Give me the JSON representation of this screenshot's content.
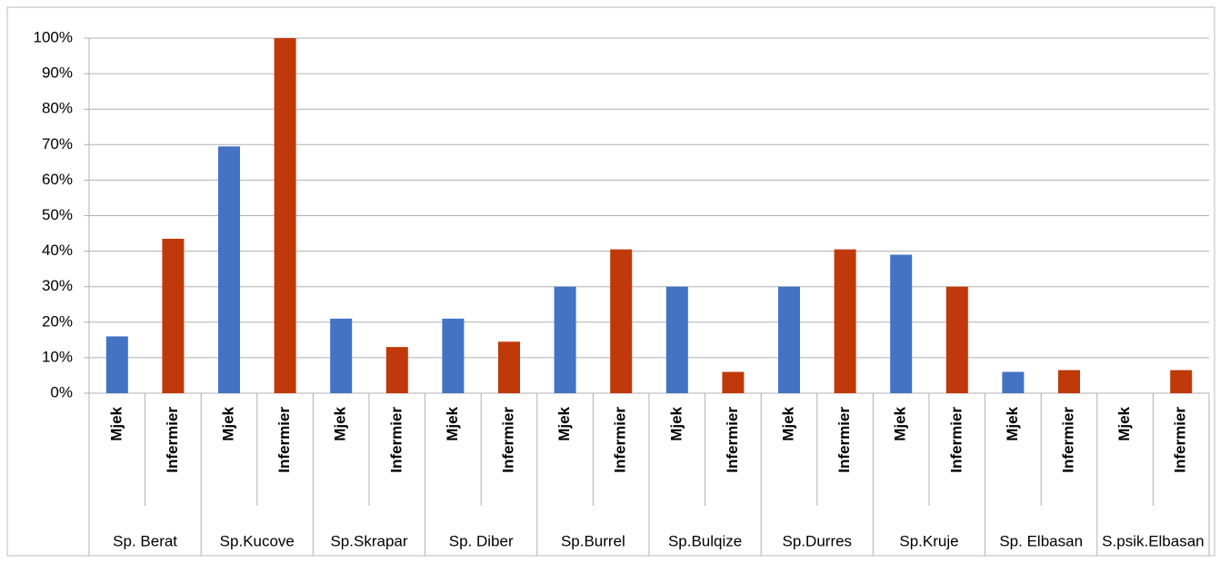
{
  "chart_data": {
    "type": "bar",
    "groups": [
      "Sp. Berat",
      "Sp.Kucove",
      "Sp.Skrapar",
      "Sp. Diber",
      "Sp.Burrel",
      "Sp.Bulqize",
      "Sp.Durres",
      "Sp.Kruje",
      "Sp. Elbasan",
      "S.psik.Elbasan"
    ],
    "categories": [
      "Mjek",
      "Infermier",
      "Mjek",
      "Infermier",
      "Mjek",
      "Infermier",
      "Mjek",
      "Infermier",
      "Mjek",
      "Infermier",
      "Mjek",
      "Infermier",
      "Mjek",
      "Infermier",
      "Mjek",
      "Infermier",
      "Mjek",
      "Infermier",
      "Mjek",
      "Infermier"
    ],
    "values": [
      16,
      43.5,
      69.5,
      100,
      21,
      13,
      21,
      14.5,
      30,
      40.5,
      30,
      6,
      30,
      40.5,
      39,
      30,
      6,
      6.5,
      0,
      6.5
    ],
    "colors": [
      "#4472c4",
      "#c0390b"
    ],
    "ylim": [
      0,
      100
    ],
    "yticks": [
      {
        "value": 0,
        "label": "0%"
      },
      {
        "value": 10,
        "label": "10%"
      },
      {
        "value": 20,
        "label": "20%"
      },
      {
        "value": 30,
        "label": "30%"
      },
      {
        "value": 40,
        "label": "40%"
      },
      {
        "value": 50,
        "label": "50%"
      },
      {
        "value": 60,
        "label": "60%"
      },
      {
        "value": 70,
        "label": "70%"
      },
      {
        "value": 80,
        "label": "80%"
      },
      {
        "value": 90,
        "label": "90%"
      },
      {
        "value": 100,
        "label": "100%"
      }
    ],
    "grid": true
  }
}
